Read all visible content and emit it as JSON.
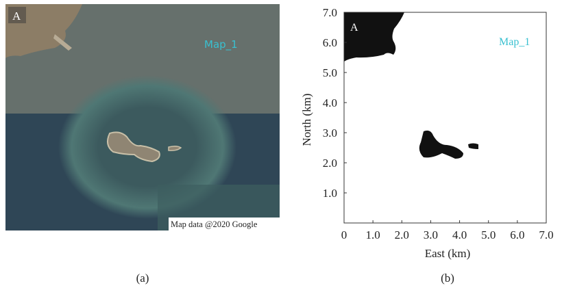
{
  "panel_a": {
    "tag": "A",
    "map_label": "Map_1",
    "attribution": "Map data @2020 Google",
    "caption": "(a)"
  },
  "panel_b": {
    "tag": "A",
    "map_label": "Map_1",
    "caption": "(b)",
    "xlabel": "East (km)",
    "ylabel": "North (km)",
    "xlim": [
      0,
      7
    ],
    "ylim": [
      0,
      7
    ],
    "xticks": [
      0,
      {
        "value": 1,
        "label": "1.0"
      },
      {
        "value": 2,
        "label": "2.0"
      },
      {
        "value": 3,
        "label": "3.0"
      },
      {
        "value": 4,
        "label": "4.0"
      },
      {
        "value": 5,
        "label": "5.0"
      },
      {
        "value": 6,
        "label": "6.0"
      },
      {
        "value": 7,
        "label": "7.0"
      }
    ],
    "yticks": [
      {
        "value": 1,
        "label": "1.0"
      },
      {
        "value": 2,
        "label": "2.0"
      },
      {
        "value": 3,
        "label": "3.0"
      },
      {
        "value": 4,
        "label": "4.0"
      },
      {
        "value": 5,
        "label": "5.0"
      },
      {
        "value": 6,
        "label": "6.0"
      },
      {
        "value": 7,
        "label": "7.0"
      }
    ]
  }
}
